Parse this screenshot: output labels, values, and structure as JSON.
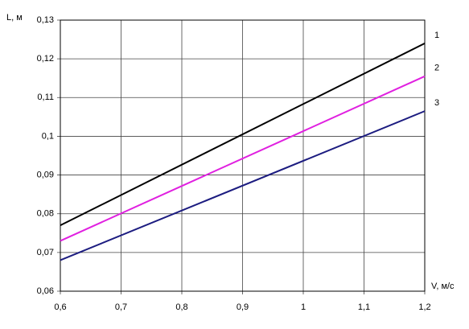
{
  "chart_data": {
    "type": "line",
    "y_label": "L, м",
    "x_label": "V, м/с",
    "xlim": [
      0.6,
      1.2
    ],
    "xticks": [
      {
        "value": 0.6,
        "label": "0,6"
      },
      {
        "value": 0.7,
        "label": "0,7"
      },
      {
        "value": 0.8,
        "label": "0,8"
      },
      {
        "value": 0.9,
        "label": "0,9"
      },
      1,
      {
        "value": 1.1,
        "label": "1,1"
      },
      {
        "value": 1.2,
        "label": "1,2"
      }
    ],
    "ylim": [
      0.06,
      0.13
    ],
    "yticks": [
      {
        "value": 0.06,
        "label": "0,06"
      },
      {
        "value": 0.07,
        "label": "0,07"
      },
      {
        "value": 0.08,
        "label": "0,08"
      },
      {
        "value": 0.09,
        "label": "0,09"
      },
      {
        "value": 0.1,
        "label": "0,1"
      },
      {
        "value": 0.11,
        "label": "0,11"
      },
      {
        "value": 0.12,
        "label": "0,12"
      },
      {
        "value": 0.13,
        "label": "0,13"
      }
    ],
    "grid": true,
    "series": [
      {
        "name": "1",
        "color": "#000000",
        "x": [
          0.6,
          1.2
        ],
        "values": [
          0.077,
          0.124
        ]
      },
      {
        "name": "2",
        "color": "#e020e0",
        "x": [
          0.6,
          1.2
        ],
        "values": [
          0.073,
          0.1155
        ]
      },
      {
        "name": "3",
        "color": "#1c1c80",
        "x": [
          0.6,
          1.2
        ],
        "values": [
          0.068,
          0.1065
        ]
      }
    ]
  }
}
